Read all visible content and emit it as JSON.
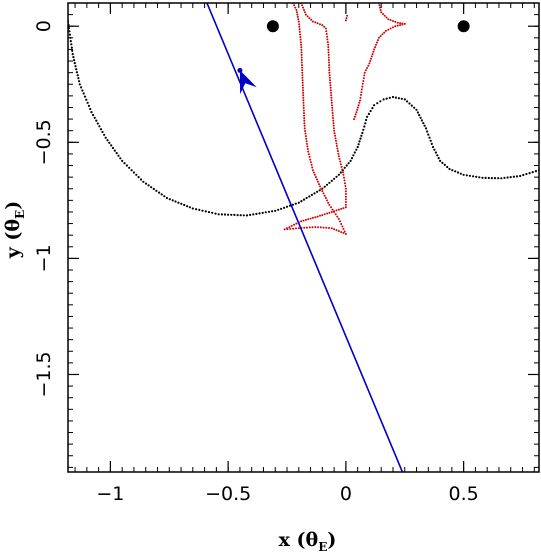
{
  "chart_data": {
    "type": "scatter",
    "xlabel": "x (θ",
    "xlabel_sub": "E",
    "xlabel_close": ")",
    "ylabel": "y (θ",
    "ylabel_sub": "E",
    "ylabel_close": ")",
    "xlim": [
      -1.18,
      0.82
    ],
    "ylim": [
      -1.92,
      0.1
    ],
    "grid": false,
    "x_ticks": [
      {
        "value": -1,
        "label": "−1"
      },
      {
        "value": -0.5,
        "label": "−0.5"
      },
      {
        "value": 0,
        "label": "0"
      },
      {
        "value": 0.5,
        "label": "0.5"
      }
    ],
    "y_ticks": [
      {
        "value": 0,
        "label": "0"
      },
      {
        "value": -0.5,
        "label": "−0.5"
      },
      {
        "value": -1,
        "label": "−1"
      },
      {
        "value": -1.5,
        "label": "−1.5"
      }
    ],
    "lenses": [
      {
        "x": -0.31,
        "y": 0.0
      },
      {
        "x": 0.5,
        "y": 0.0
      }
    ],
    "trajectory": {
      "color": "#0000c8",
      "points": [
        [
          -0.59,
          0.1
        ],
        [
          0.24,
          -1.92
        ]
      ],
      "arrow_at": [
        -0.45,
        -0.19
      ]
    },
    "critical_curve": {
      "color": "#000000",
      "points": [
        [
          -1.18,
          0.02
        ],
        [
          -1.16,
          -0.12
        ],
        [
          -1.13,
          -0.25
        ],
        [
          -1.08,
          -0.37
        ],
        [
          -1.02,
          -0.48
        ],
        [
          -0.95,
          -0.58
        ],
        [
          -0.86,
          -0.67
        ],
        [
          -0.76,
          -0.74
        ],
        [
          -0.65,
          -0.785
        ],
        [
          -0.54,
          -0.81
        ],
        [
          -0.42,
          -0.815
        ],
        [
          -0.3,
          -0.795
        ],
        [
          -0.2,
          -0.76
        ],
        [
          -0.1,
          -0.7
        ],
        [
          -0.03,
          -0.64
        ],
        [
          0.02,
          -0.58
        ],
        [
          0.05,
          -0.52
        ],
        [
          0.07,
          -0.46
        ],
        [
          0.09,
          -0.39
        ],
        [
          0.12,
          -0.34
        ],
        [
          0.16,
          -0.315
        ],
        [
          0.2,
          -0.305
        ],
        [
          0.25,
          -0.315
        ],
        [
          0.3,
          -0.36
        ],
        [
          0.34,
          -0.44
        ],
        [
          0.37,
          -0.52
        ],
        [
          0.4,
          -0.58
        ],
        [
          0.44,
          -0.615
        ],
        [
          0.5,
          -0.64
        ],
        [
          0.58,
          -0.653
        ],
        [
          0.66,
          -0.655
        ],
        [
          0.74,
          -0.645
        ],
        [
          0.82,
          -0.62
        ]
      ]
    },
    "caustic": {
      "color": "#d00000",
      "upper_points": [
        [
          -0.19,
          0.1
        ],
        [
          -0.17,
          0.05
        ],
        [
          -0.14,
          0.02
        ],
        [
          -0.1,
          0.005
        ],
        [
          -0.085,
          -0.01
        ],
        [
          -0.075,
          -0.08
        ],
        [
          -0.07,
          -0.2
        ],
        [
          -0.06,
          -0.33
        ],
        [
          -0.05,
          -0.45
        ],
        [
          -0.03,
          -0.56
        ],
        [
          -0.01,
          -0.64
        ],
        [
          0.0,
          -0.7
        ],
        [
          0.0,
          -0.78
        ],
        [
          -0.06,
          -0.8
        ],
        [
          -0.12,
          -0.82
        ],
        [
          -0.19,
          -0.84
        ],
        [
          -0.26,
          -0.875
        ],
        [
          -0.2,
          -0.87
        ],
        [
          -0.13,
          -0.865
        ],
        [
          -0.06,
          -0.87
        ],
        [
          -0.0,
          -0.895
        ],
        [
          -0.03,
          -0.83
        ],
        [
          -0.07,
          -0.77
        ],
        [
          -0.11,
          -0.69
        ],
        [
          -0.14,
          -0.62
        ],
        [
          -0.16,
          -0.54
        ],
        [
          -0.175,
          -0.44
        ],
        [
          -0.18,
          -0.33
        ],
        [
          -0.185,
          -0.2
        ],
        [
          -0.19,
          -0.08
        ],
        [
          -0.2,
          0.02
        ],
        [
          -0.21,
          0.07
        ],
        [
          -0.225,
          0.1
        ]
      ],
      "right_points": [
        [
          0.14,
          0.1
        ],
        [
          0.15,
          0.06
        ],
        [
          0.18,
          0.03
        ],
        [
          0.22,
          0.015
        ],
        [
          0.25,
          0.01
        ],
        [
          0.21,
          0.0
        ],
        [
          0.17,
          -0.02
        ],
        [
          0.14,
          -0.05
        ],
        [
          0.12,
          -0.1
        ],
        [
          0.1,
          -0.16
        ],
        [
          0.08,
          -0.2
        ],
        [
          0.07,
          -0.26
        ],
        [
          0.06,
          -0.32
        ],
        [
          0.045,
          -0.37
        ],
        [
          0.035,
          -0.4
        ]
      ],
      "small_points": [
        [
          0.0,
          0.025
        ],
        [
          0.005,
          0.045
        ]
      ]
    }
  }
}
